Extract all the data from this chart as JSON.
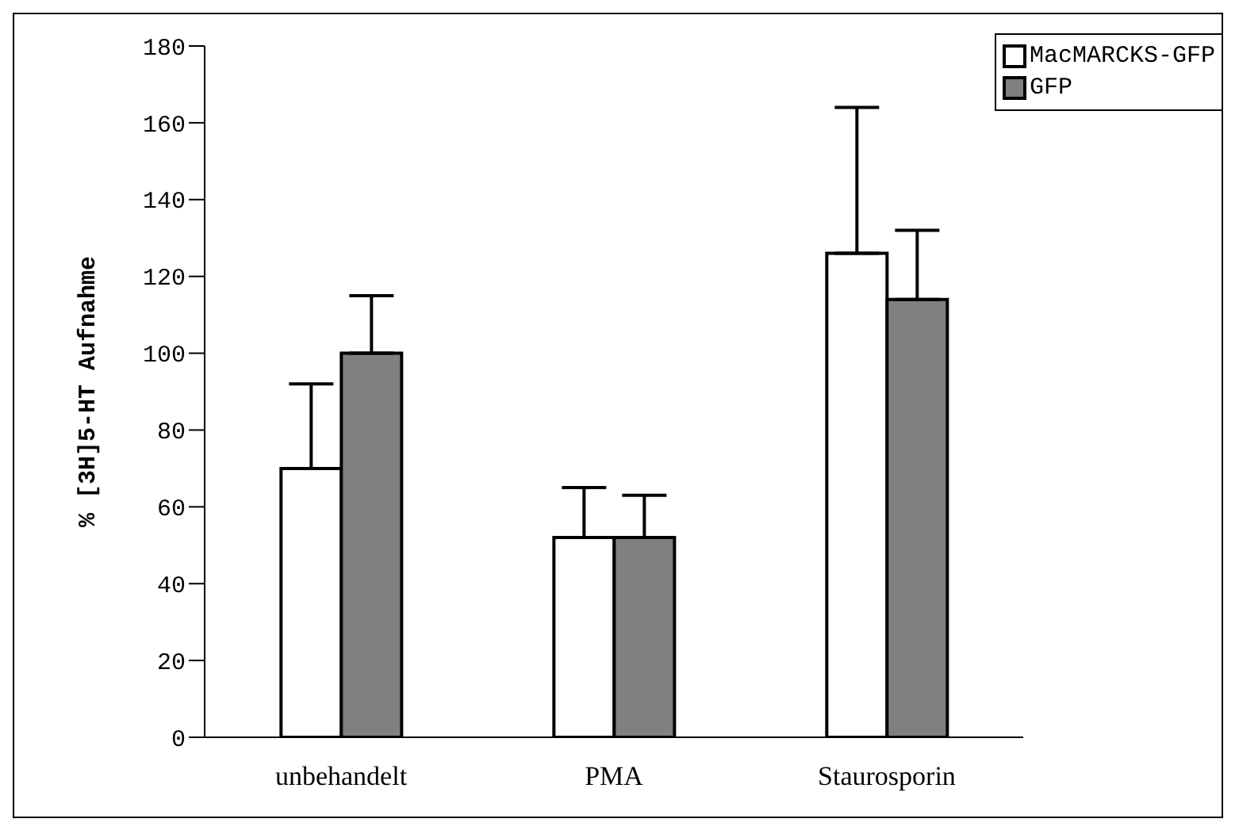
{
  "chart_data": {
    "type": "bar",
    "ylabel": "% [3H]5-HT Aufnahme",
    "categories": [
      "unbehandelt",
      "PMA",
      "Staurosporin"
    ],
    "series": [
      {
        "name": "MacMARCKS-GFP",
        "color": "#ffffff",
        "values": [
          70,
          52,
          126
        ],
        "errors": [
          [
            70,
            92
          ],
          [
            52,
            65
          ],
          [
            126,
            164
          ]
        ]
      },
      {
        "name": "GFP",
        "color": "#808080",
        "values": [
          100,
          52,
          114
        ],
        "errors": [
          [
            100,
            115
          ],
          [
            52,
            63
          ],
          [
            114,
            132
          ]
        ]
      }
    ],
    "ylim": [
      0,
      180
    ],
    "yticks": [
      0,
      20,
      40,
      60,
      80,
      100,
      120,
      140,
      160,
      180
    ],
    "grid": false,
    "legend": "top right"
  }
}
